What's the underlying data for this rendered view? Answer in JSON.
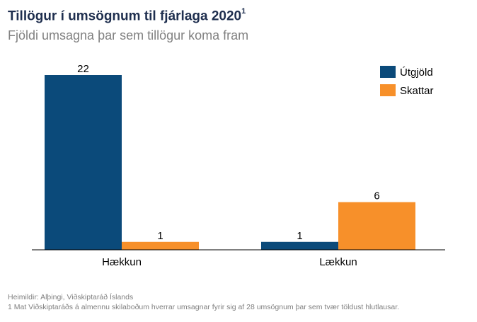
{
  "header": {
    "title": "Tillögur í umsögnum til fjárlaga 2020",
    "title_superscript": "1",
    "subtitle": "Fjöldi umsagna þar sem tillögur koma fram"
  },
  "footer": {
    "source": "Heimildir: Alþingi, Viðskiptaráð Íslands",
    "note": "1 Mat Viðskiptaráðs á almennu skilaboðum hverrar umsagnar fyrir sig af 28 umsögnum þar sem tvær töldust hlutlausar."
  },
  "chart_data": {
    "type": "bar",
    "categories": [
      "Hækkun",
      "Lækkun"
    ],
    "series": [
      {
        "name": "Útgjöld",
        "values": [
          22,
          1
        ],
        "color": "#0b4a7a"
      },
      {
        "name": "Skattar",
        "values": [
          1,
          6
        ],
        "color": "#f7902a"
      }
    ],
    "ylim": [
      0,
      22
    ],
    "grid": false,
    "legend_position": "top-right",
    "data_labels": true
  }
}
